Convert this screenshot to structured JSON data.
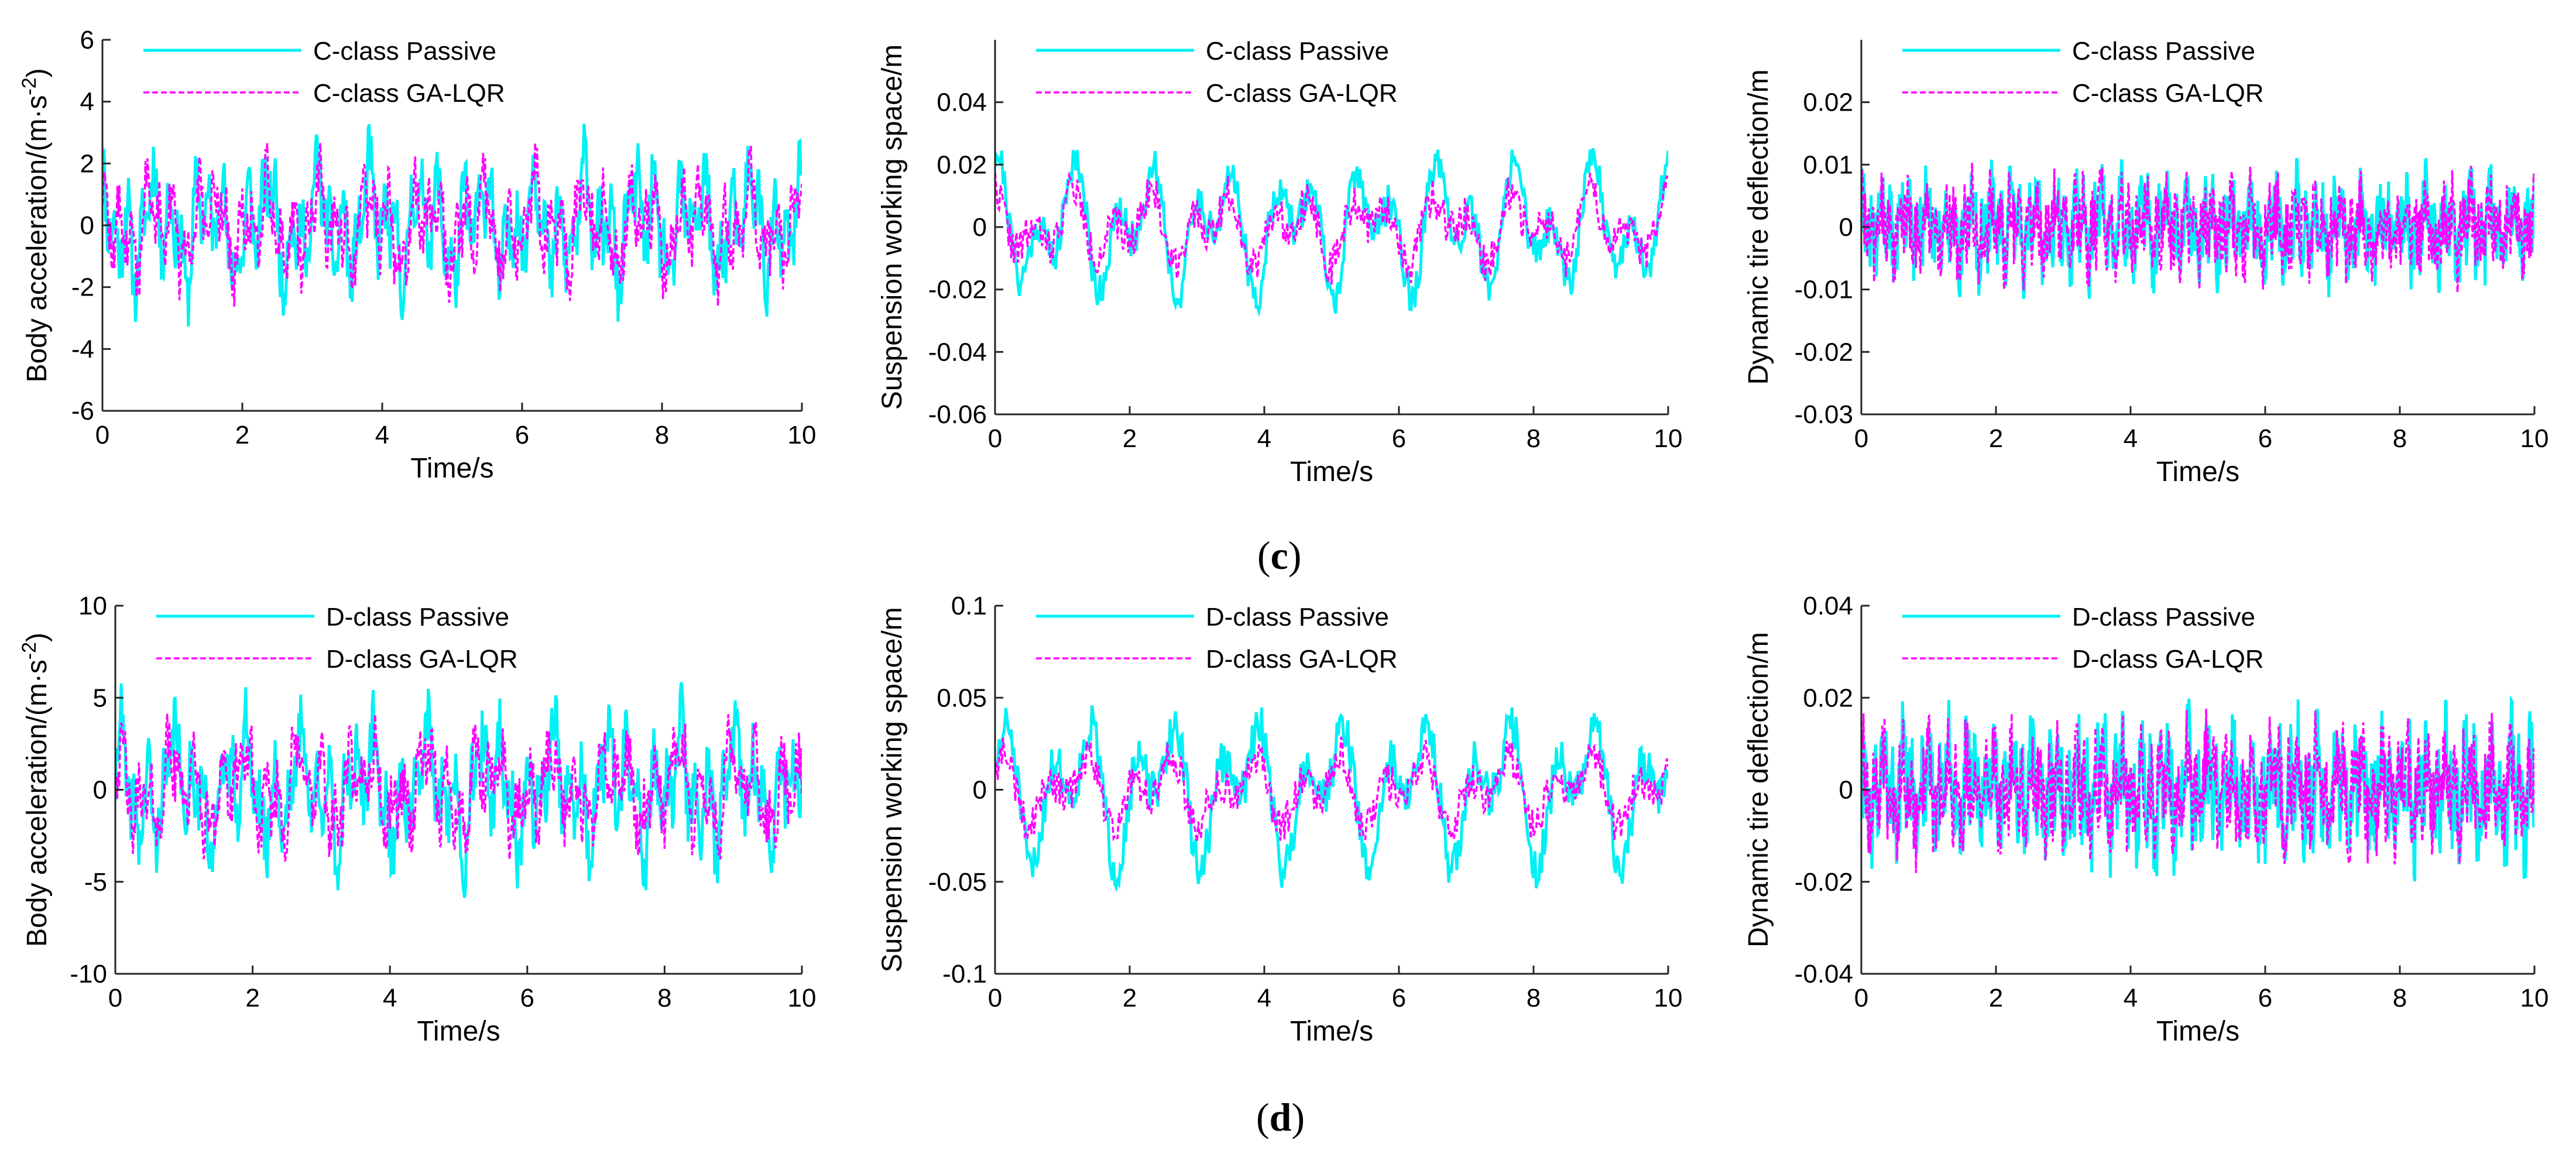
{
  "figure": {
    "captions": [
      "c",
      "d"
    ],
    "colors": {
      "passive": "#00f0f5",
      "gaLqr": "#ff00ff",
      "axis": "#262626"
    }
  },
  "chart_data": [
    {
      "id": "c1",
      "type": "line",
      "x": [
        0,
        10
      ],
      "xlabel": "Time/s",
      "ylabel": "Body acceleration/(m·s",
      "ylabel_sup": "-2",
      "ylabel_tail": ")",
      "xlim": [
        0,
        10
      ],
      "ylim": [
        -6,
        6
      ],
      "xticks": [
        0,
        2,
        4,
        6,
        8,
        10
      ],
      "xtick_labels": [
        "0",
        "2",
        "4",
        "6",
        "8",
        "10"
      ],
      "yticks": [
        -6,
        -4,
        -2,
        0,
        2,
        4,
        6
      ],
      "ytick_labels": [
        "-6",
        "-4",
        "-2",
        "0",
        "2",
        "4",
        "6"
      ],
      "legend": "top-left",
      "series": [
        {
          "name": "C-class Passive",
          "approximate": true,
          "params": {
            "amp": 2.6,
            "freqs": [
              1.3,
              2.9,
              5.2
            ],
            "noiseAmp": 1.0,
            "n": 700,
            "seed": 11
          }
        },
        {
          "name": "C-class GA-LQR",
          "approximate": true,
          "params": {
            "amp": 2.1,
            "freqs": [
              1.3,
              2.9,
              5.2
            ],
            "noiseAmp": 0.9,
            "n": 700,
            "seed": 12
          }
        }
      ]
    },
    {
      "id": "c2",
      "type": "line",
      "x": [
        0,
        10
      ],
      "xlabel": "Time/s",
      "ylabel": "Suspension working space/m",
      "xlim": [
        0,
        10
      ],
      "ylim": [
        -0.06,
        0.06
      ],
      "xticks": [
        0,
        2,
        4,
        6,
        8,
        10
      ],
      "xtick_labels": [
        "0",
        "2",
        "4",
        "6",
        "8",
        "10"
      ],
      "yticks": [
        -0.06,
        -0.04,
        -0.02,
        0,
        0.02,
        0.04
      ],
      "ytick_labels": [
        "-0.06",
        "-0.04",
        "-0.02",
        "0",
        "0.02",
        "0.04"
      ],
      "legend": "top-left",
      "series": [
        {
          "name": "C-class Passive",
          "approximate": true,
          "params": {
            "amp": 0.024,
            "freqs": [
              0.9,
              1.7
            ],
            "noiseAmp": 0.006,
            "n": 500,
            "seed": 21
          }
        },
        {
          "name": "C-class GA-LQR",
          "approximate": true,
          "params": {
            "amp": 0.013,
            "freqs": [
              0.9,
              1.7
            ],
            "noiseAmp": 0.006,
            "n": 500,
            "seed": 22
          }
        }
      ]
    },
    {
      "id": "c3",
      "type": "line",
      "x": [
        0,
        10
      ],
      "xlabel": "Time/s",
      "ylabel": "Dynamic tire deflection/m",
      "xlim": [
        0,
        10
      ],
      "ylim": [
        -0.03,
        0.03
      ],
      "xticks": [
        0,
        2,
        4,
        6,
        8,
        10
      ],
      "xtick_labels": [
        "0",
        "2",
        "4",
        "6",
        "8",
        "10"
      ],
      "yticks": [
        -0.03,
        -0.02,
        -0.01,
        0,
        0.01,
        0.02
      ],
      "ytick_labels": [
        "-0.03",
        "-0.02",
        "-0.01",
        "0",
        "0.01",
        "0.02"
      ],
      "legend": "top-left",
      "series": [
        {
          "name": "C-class Passive",
          "approximate": true,
          "params": {
            "amp": 0.006,
            "freqs": [
              3.1,
              7.3
            ],
            "noiseAmp": 0.006,
            "n": 900,
            "seed": 31
          }
        },
        {
          "name": "C-class GA-LQR",
          "approximate": true,
          "params": {
            "amp": 0.005,
            "freqs": [
              3.1,
              7.3
            ],
            "noiseAmp": 0.006,
            "n": 900,
            "seed": 32
          }
        }
      ]
    },
    {
      "id": "d1",
      "type": "line",
      "x": [
        0,
        10
      ],
      "xlabel": "Time/s",
      "ylabel": "Body acceleration/(m·s",
      "ylabel_sup": "-2",
      "ylabel_tail": ")",
      "xlim": [
        0,
        10
      ],
      "ylim": [
        -10,
        10
      ],
      "xticks": [
        0,
        2,
        4,
        6,
        8,
        10
      ],
      "xtick_labels": [
        "0",
        "2",
        "4",
        "6",
        "8",
        "10"
      ],
      "yticks": [
        -10,
        -5,
        0,
        5,
        10
      ],
      "ytick_labels": [
        "-10",
        "-5",
        "0",
        "5",
        "10"
      ],
      "legend": "top-left",
      "series": [
        {
          "name": "D-class Passive",
          "approximate": true,
          "params": {
            "amp": 4.6,
            "freqs": [
              1.1,
              2.7,
              4.9
            ],
            "noiseAmp": 1.8,
            "n": 700,
            "seed": 41
          }
        },
        {
          "name": "D-class GA-LQR",
          "approximate": true,
          "params": {
            "amp": 3.6,
            "freqs": [
              1.1,
              2.7,
              4.9
            ],
            "noiseAmp": 1.6,
            "n": 700,
            "seed": 42
          }
        }
      ]
    },
    {
      "id": "d2",
      "type": "line",
      "x": [
        0,
        10
      ],
      "xlabel": "Time/s",
      "ylabel": "Suspension working space/m",
      "xlim": [
        0,
        10
      ],
      "ylim": [
        -0.1,
        0.1
      ],
      "xticks": [
        0,
        2,
        4,
        6,
        8,
        10
      ],
      "xtick_labels": [
        "0",
        "2",
        "4",
        "6",
        "8",
        "10"
      ],
      "yticks": [
        -0.1,
        -0.05,
        0,
        0.05,
        0.1
      ],
      "ytick_labels": [
        "-0.1",
        "-0.05",
        "0",
        "0.05",
        "0.1"
      ],
      "legend": "top-left",
      "series": [
        {
          "name": "D-class Passive",
          "approximate": true,
          "params": {
            "amp": 0.045,
            "freqs": [
              0.8,
              1.6
            ],
            "noiseAmp": 0.012,
            "n": 500,
            "seed": 51
          }
        },
        {
          "name": "D-class GA-LQR",
          "approximate": true,
          "params": {
            "amp": 0.022,
            "freqs": [
              0.8,
              1.6
            ],
            "noiseAmp": 0.01,
            "n": 500,
            "seed": 52
          }
        }
      ]
    },
    {
      "id": "d3",
      "type": "line",
      "x": [
        0,
        10
      ],
      "xlabel": "Time/s",
      "ylabel": "Dynamic tire deflection/m",
      "xlim": [
        0,
        10
      ],
      "ylim": [
        -0.04,
        0.04
      ],
      "xticks": [
        0,
        2,
        4,
        6,
        8,
        10
      ],
      "xtick_labels": [
        "0",
        "2",
        "4",
        "6",
        "8",
        "10"
      ],
      "yticks": [
        -0.04,
        -0.02,
        0,
        0.02,
        0.04
      ],
      "ytick_labels": [
        "-0.04",
        "-0.02",
        "0",
        "0.02",
        "0.04"
      ],
      "legend": "top-left",
      "series": [
        {
          "name": "D-class Passive",
          "approximate": true,
          "params": {
            "amp": 0.011,
            "freqs": [
              3.1,
              7.3
            ],
            "noiseAmp": 0.011,
            "n": 900,
            "seed": 61
          }
        },
        {
          "name": "D-class GA-LQR",
          "approximate": true,
          "params": {
            "amp": 0.009,
            "freqs": [
              3.1,
              7.3
            ],
            "noiseAmp": 0.01,
            "n": 900,
            "seed": 62
          }
        }
      ]
    }
  ]
}
